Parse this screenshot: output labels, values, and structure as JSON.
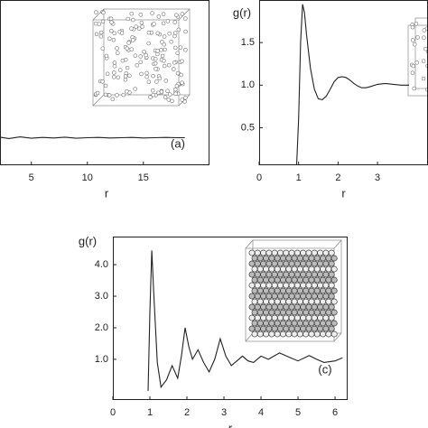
{
  "chart_data": [
    {
      "type": "line",
      "xlabel": "r",
      "annotation": "(a)",
      "x": [
        2.2,
        3,
        4,
        5,
        6,
        7,
        8,
        9,
        10,
        11,
        12,
        13,
        14,
        15,
        16,
        17,
        18,
        18.7
      ],
      "series": [
        {
          "color": "#222222",
          "values": [
            1.02,
            0.97,
            1.03,
            0.98,
            1.01,
            0.99,
            1.02,
            0.98,
            1.0,
            1.01,
            0.99,
            1.0,
            1.01,
            0.99,
            1.0,
            1.01,
            1.0,
            1.0
          ]
        }
      ],
      "xlim": [
        2.2,
        20.9
      ],
      "xticks": [
        5,
        10,
        15
      ],
      "ylim": [
        0,
        6
      ]
    },
    {
      "type": "line",
      "xlabel": "r",
      "ylabel": "g(r)",
      "x": [
        0.95,
        1.0,
        1.05,
        1.1,
        1.15,
        1.2,
        1.3,
        1.4,
        1.5,
        1.6,
        1.7,
        1.8,
        1.9,
        2.0,
        2.1,
        2.2,
        2.3,
        2.4,
        2.5,
        2.6,
        2.7,
        2.8,
        3.0,
        3.2,
        3.4,
        3.6,
        3.8
      ],
      "series": [
        {
          "color": "#222222",
          "values": [
            0.06,
            0.6,
            1.5,
            1.95,
            1.85,
            1.6,
            1.2,
            0.95,
            0.84,
            0.83,
            0.87,
            0.95,
            1.04,
            1.09,
            1.1,
            1.09,
            1.06,
            1.02,
            0.99,
            0.97,
            0.97,
            0.98,
            1.01,
            1.02,
            1.01,
            1.0,
            1.0
          ]
        }
      ],
      "xlim": [
        0,
        4.28
      ],
      "xticks": [
        0,
        1,
        2,
        3
      ],
      "ylim": [
        0.06,
        2.0
      ],
      "yticks": [
        0.5,
        {
          "value": 1,
          "label": "1.0"
        },
        1.5
      ]
    },
    {
      "type": "line",
      "xlabel": "r",
      "ylabel": "g(r)",
      "annotation": "(c)",
      "x": [
        0.95,
        1.0,
        1.05,
        1.1,
        1.2,
        1.3,
        1.45,
        1.6,
        1.75,
        1.85,
        1.95,
        2.05,
        2.15,
        2.3,
        2.45,
        2.6,
        2.75,
        2.9,
        3.05,
        3.2,
        3.35,
        3.5,
        3.65,
        3.8,
        4.0,
        4.2,
        4.5,
        4.8,
        5.0,
        5.3,
        5.5,
        5.7,
        6.0,
        6.2
      ],
      "series": [
        {
          "color": "#222222",
          "values": [
            0.0,
            2.5,
            4.45,
            3.2,
            0.9,
            0.12,
            0.35,
            0.8,
            0.4,
            1.1,
            2.0,
            1.4,
            1.0,
            1.3,
            0.9,
            0.6,
            1.0,
            1.65,
            1.1,
            0.8,
            0.95,
            1.1,
            0.95,
            0.9,
            1.1,
            1.0,
            1.2,
            1.05,
            0.95,
            1.12,
            1.0,
            0.9,
            0.95,
            1.05
          ]
        }
      ],
      "xlim": [
        0,
        6.34
      ],
      "xticks": [
        0,
        1,
        2,
        3,
        4,
        5,
        6
      ],
      "ylim": [
        -0.29,
        4.89
      ],
      "yticks": [
        {
          "value": 1,
          "label": "1.0"
        },
        {
          "value": 2,
          "label": "2.0"
        },
        {
          "value": 3,
          "label": "3.0"
        },
        {
          "value": 4,
          "label": "4.0"
        }
      ]
    }
  ]
}
